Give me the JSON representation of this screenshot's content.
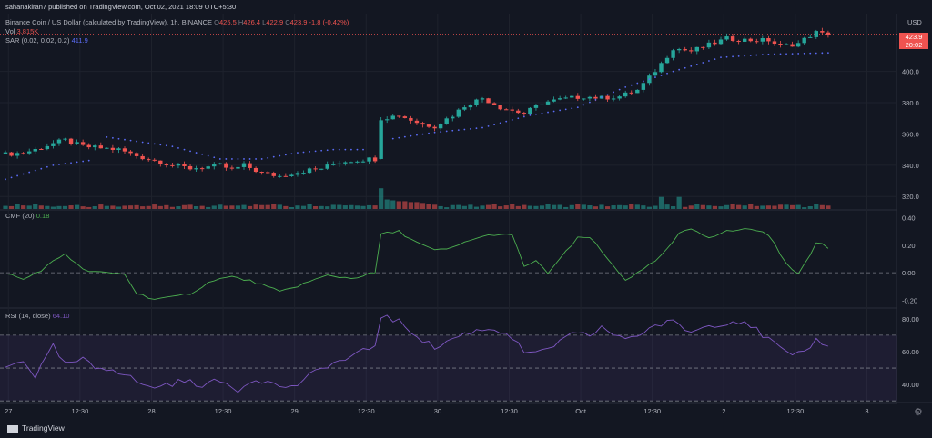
{
  "header": {
    "publish_line": "sahanakiran7 published on TradingView.com, Oct 02, 2021 18:09 UTC+5:30",
    "symbol": "Binance Coin / US Dollar (calculated by TradingView), 1h, BINANCE",
    "ohlc": {
      "o_label": "O",
      "o": "425.5",
      "h_label": "H",
      "h": "426.4",
      "l_label": "L",
      "l": "422.9",
      "c_label": "C",
      "c": "423.9",
      "change": "-1.8 (-0.42%)"
    },
    "vol_label": "Vol",
    "vol_value": "3.815K",
    "sar_label": "SAR (0.02, 0.02, 0.2)",
    "sar_value": "411.9"
  },
  "currency": "USD",
  "price_badge": {
    "price": "423.9",
    "countdown": "20:02"
  },
  "footer": {
    "brand": "TradingView"
  },
  "colors": {
    "up": "#26a69a",
    "down": "#ef5350",
    "sar": "#5b6cf5",
    "cmf": "#4caf50",
    "rsi": "#7e57c2",
    "background": "#131722",
    "grid": "#1e222d"
  },
  "icons": {
    "logo": "tradingview-logo-icon",
    "settings": "gear-icon"
  },
  "chart_data": [
    {
      "type": "candlestick",
      "title": "Binance Coin / US Dollar (calculated by TradingView), 1h, BINANCE",
      "ylabel": "USD",
      "ylim": [
        312,
        437
      ],
      "y_ticks": [
        "320.0",
        "340.0",
        "360.0",
        "380.0",
        "400.0"
      ],
      "x_ticks": [
        "27",
        "12:30",
        "28",
        "12:30",
        "29",
        "12:30",
        "30",
        "12:30",
        "Oct",
        "12:30",
        "2",
        "12:30",
        "3"
      ],
      "x_tick_positions": [
        0.5,
        12.5,
        24.5,
        36.5,
        48.5,
        60.5,
        72.5,
        84.5,
        96.5,
        108.5,
        120.5,
        132.5,
        144.5
      ],
      "anchors": [
        [
          0,
          347
        ],
        [
          3,
          348
        ],
        [
          5,
          350
        ],
        [
          8,
          354
        ],
        [
          10,
          356
        ],
        [
          13,
          352
        ],
        [
          16,
          351
        ],
        [
          19,
          350
        ],
        [
          22,
          346
        ],
        [
          25,
          343
        ],
        [
          28,
          340
        ],
        [
          31,
          338
        ],
        [
          34,
          339
        ],
        [
          36,
          340
        ],
        [
          38,
          337
        ],
        [
          40,
          340
        ],
        [
          43,
          335
        ],
        [
          46,
          333
        ],
        [
          48,
          335
        ],
        [
          51,
          337
        ],
        [
          53,
          338
        ],
        [
          56,
          342
        ],
        [
          58,
          343
        ],
        [
          61,
          344
        ],
        [
          62,
          344
        ],
        [
          63,
          370
        ],
        [
          66,
          372
        ],
        [
          70,
          366
        ],
        [
          72,
          365
        ],
        [
          75,
          372
        ],
        [
          77,
          378
        ],
        [
          80,
          383
        ],
        [
          83,
          377
        ],
        [
          87,
          373
        ],
        [
          90,
          380
        ],
        [
          93,
          382
        ],
        [
          97,
          384
        ],
        [
          100,
          383
        ],
        [
          103,
          384
        ],
        [
          106,
          388
        ],
        [
          108,
          396
        ],
        [
          110,
          405
        ],
        [
          112,
          415
        ],
        [
          115,
          413
        ],
        [
          118,
          417
        ],
        [
          121,
          421
        ],
        [
          125,
          420
        ],
        [
          128,
          420
        ],
        [
          130,
          416
        ],
        [
          133,
          418
        ],
        [
          135,
          423
        ],
        [
          136,
          425
        ],
        [
          137,
          424
        ],
        [
          138,
          424
        ]
      ],
      "candle_count": 139,
      "sar": {
        "below": [
          [
            0,
            331
          ],
          [
            8,
            340
          ],
          [
            14,
            343
          ]
        ],
        "above": [
          [
            17,
            358
          ],
          [
            28,
            352
          ],
          [
            36,
            344
          ],
          [
            43,
            344
          ],
          [
            49,
            348
          ],
          [
            55,
            350
          ],
          [
            60,
            350
          ]
        ],
        "below2": [
          [
            65,
            357
          ],
          [
            72,
            361
          ],
          [
            80,
            364
          ],
          [
            88,
            372
          ],
          [
            96,
            377
          ],
          [
            104,
            390
          ],
          [
            112,
            400
          ],
          [
            120,
            409
          ],
          [
            128,
            411
          ],
          [
            138,
            411.9
          ]
        ]
      },
      "volume": {
        "base": [
          3,
          3,
          4,
          3,
          3,
          4,
          3,
          3,
          2,
          3,
          3,
          4,
          3,
          3,
          2,
          3,
          4,
          3,
          3,
          2
        ],
        "spike_index": 63,
        "spike": 24,
        "post": [
          11,
          10,
          9,
          9,
          8,
          8,
          7,
          6
        ]
      }
    },
    {
      "type": "line",
      "title": "CMF (20)",
      "series": [
        {
          "name": "CMF (20)",
          "last": "0.18"
        }
      ],
      "ylim": [
        -0.25,
        0.45
      ],
      "y_ticks": [
        "-0.20",
        "0.00",
        "0.20",
        "0.40"
      ],
      "zero_line": 0.0,
      "anchors": [
        [
          0,
          0.0
        ],
        [
          3,
          -0.05
        ],
        [
          6,
          0.02
        ],
        [
          10,
          0.14
        ],
        [
          13,
          0.02
        ],
        [
          16,
          0.0
        ],
        [
          20,
          -0.01
        ],
        [
          22,
          -0.15
        ],
        [
          25,
          -0.19
        ],
        [
          28,
          -0.18
        ],
        [
          31,
          -0.15
        ],
        [
          35,
          -0.05
        ],
        [
          38,
          -0.03
        ],
        [
          42,
          -0.07
        ],
        [
          46,
          -0.14
        ],
        [
          50,
          -0.08
        ],
        [
          54,
          -0.02
        ],
        [
          58,
          -0.04
        ],
        [
          61,
          -0.01
        ],
        [
          62,
          0.0
        ],
        [
          63,
          0.28
        ],
        [
          66,
          0.3
        ],
        [
          69,
          0.22
        ],
        [
          72,
          0.16
        ],
        [
          75,
          0.18
        ],
        [
          78,
          0.24
        ],
        [
          82,
          0.28
        ],
        [
          85,
          0.27
        ],
        [
          87,
          0.05
        ],
        [
          89,
          0.08
        ],
        [
          91,
          0.0
        ],
        [
          93,
          0.1
        ],
        [
          96,
          0.25
        ],
        [
          98,
          0.26
        ],
        [
          101,
          0.1
        ],
        [
          104,
          -0.05
        ],
        [
          107,
          0.02
        ],
        [
          110,
          0.12
        ],
        [
          113,
          0.28
        ],
        [
          115,
          0.32
        ],
        [
          118,
          0.26
        ],
        [
          121,
          0.3
        ],
        [
          125,
          0.32
        ],
        [
          128,
          0.28
        ],
        [
          131,
          0.06
        ],
        [
          133,
          0.0
        ],
        [
          135,
          0.12
        ],
        [
          136,
          0.22
        ],
        [
          137,
          0.21
        ],
        [
          138,
          0.18
        ]
      ]
    },
    {
      "type": "line",
      "title": "RSI (14, close)",
      "series": [
        {
          "name": "RSI (14, close)",
          "last": "64.10"
        }
      ],
      "ylim": [
        29,
        86
      ],
      "y_ticks": [
        "40.00",
        "60.00",
        "80.00"
      ],
      "band": [
        30,
        70
      ],
      "midline": 50,
      "anchors": [
        [
          0,
          50
        ],
        [
          3,
          55
        ],
        [
          5,
          45
        ],
        [
          8,
          63
        ],
        [
          10,
          52
        ],
        [
          13,
          55
        ],
        [
          15,
          50
        ],
        [
          18,
          50
        ],
        [
          21,
          44
        ],
        [
          24,
          38
        ],
        [
          27,
          40
        ],
        [
          30,
          42
        ],
        [
          33,
          40
        ],
        [
          36,
          42
        ],
        [
          39,
          37
        ],
        [
          42,
          44
        ],
        [
          45,
          40
        ],
        [
          48,
          38
        ],
        [
          51,
          45
        ],
        [
          54,
          52
        ],
        [
          57,
          55
        ],
        [
          60,
          60
        ],
        [
          62,
          64
        ],
        [
          63,
          82
        ],
        [
          66,
          78
        ],
        [
          69,
          70
        ],
        [
          72,
          62
        ],
        [
          75,
          68
        ],
        [
          78,
          72
        ],
        [
          81,
          74
        ],
        [
          84,
          72
        ],
        [
          87,
          60
        ],
        [
          89,
          58
        ],
        [
          92,
          64
        ],
        [
          95,
          70
        ],
        [
          98,
          70
        ],
        [
          100,
          75
        ],
        [
          103,
          68
        ],
        [
          106,
          70
        ],
        [
          109,
          76
        ],
        [
          112,
          78
        ],
        [
          115,
          72
        ],
        [
          118,
          76
        ],
        [
          121,
          78
        ],
        [
          124,
          79
        ],
        [
          127,
          70
        ],
        [
          130,
          62
        ],
        [
          132,
          56
        ],
        [
          134,
          60
        ],
        [
          136,
          67
        ],
        [
          137,
          66
        ],
        [
          138,
          64.1
        ]
      ]
    }
  ]
}
